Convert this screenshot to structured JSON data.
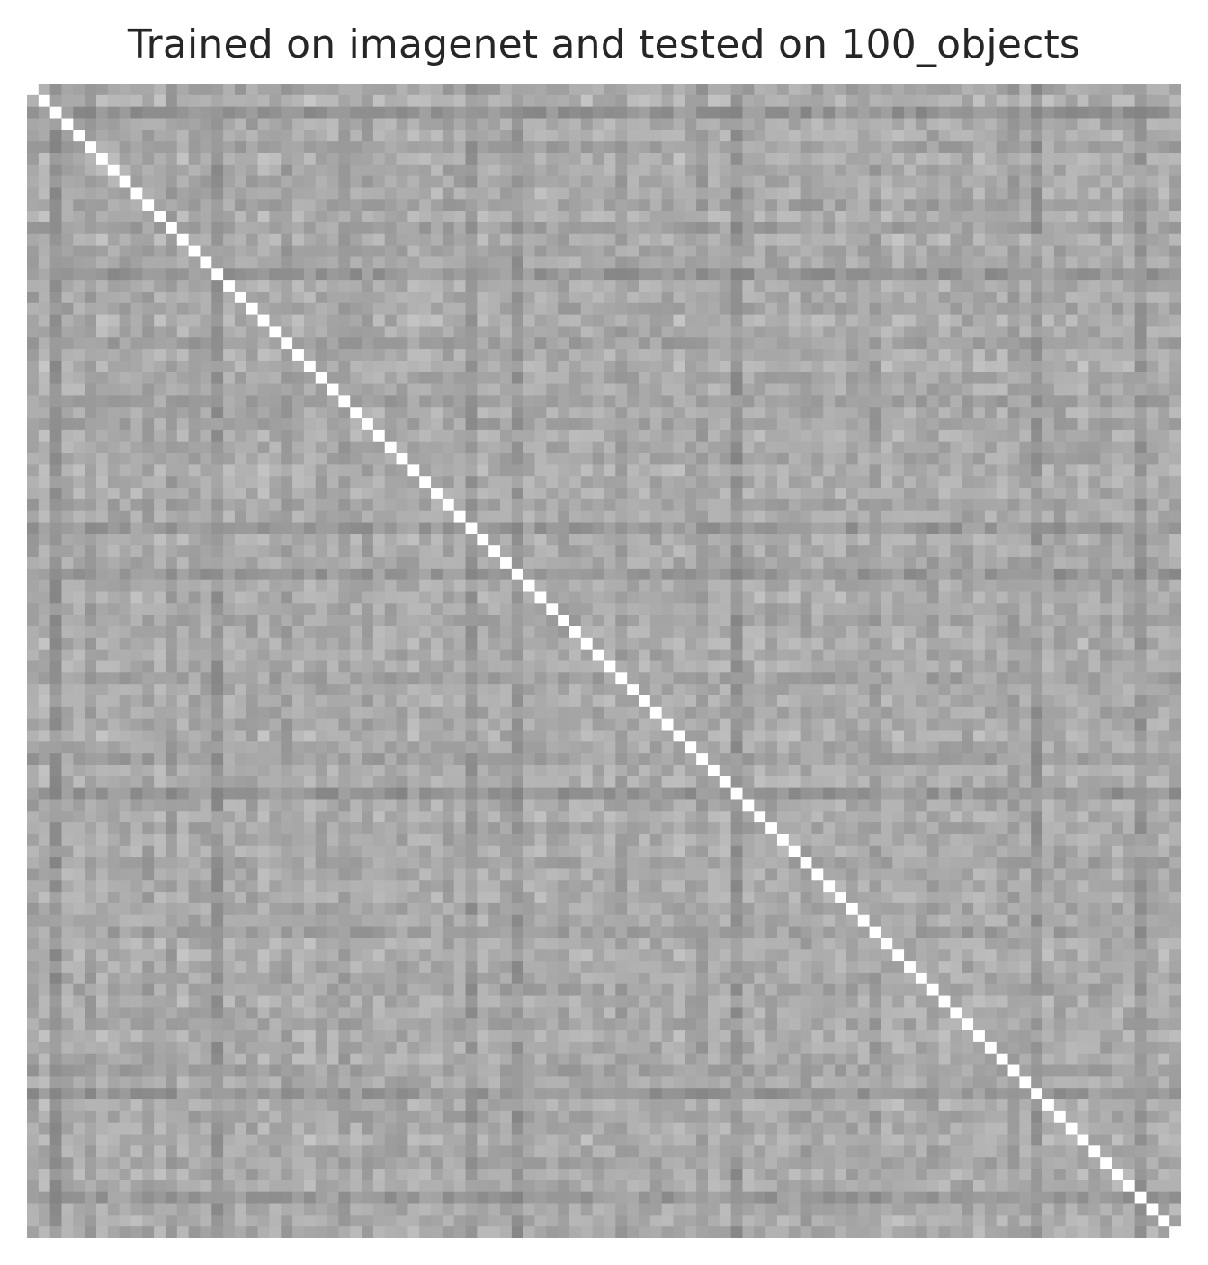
{
  "chart_data": {
    "type": "heatmap",
    "title": "Trained on imagenet and tested on 100_objects",
    "rows": 100,
    "cols": 100,
    "xlabel": "",
    "ylabel": "",
    "x_tick_labels": [],
    "y_tick_labels": [],
    "colormap": "grayscale",
    "color_low": "#7e7e7e",
    "color_high": "#ffffff",
    "value_range": [
      0,
      1
    ],
    "diagonal_value": 1.0,
    "off_diagonal_typical_range": [
      0.45,
      0.72
    ],
    "off_diagonal_mean": 0.6,
    "note_symmetric": true,
    "grid": false,
    "legend": "none",
    "row_means": [
      0.57,
      0.65,
      0.48,
      0.6,
      0.62,
      0.56,
      0.66,
      0.6,
      0.58,
      0.62,
      0.56,
      0.63,
      0.55,
      0.64,
      0.58,
      0.6,
      0.5,
      0.62,
      0.59,
      0.57,
      0.64,
      0.6,
      0.55,
      0.62,
      0.66,
      0.58,
      0.6,
      0.55,
      0.6,
      0.57,
      0.63,
      0.59,
      0.58,
      0.64,
      0.6,
      0.62,
      0.57,
      0.6,
      0.51,
      0.62,
      0.6,
      0.58,
      0.5,
      0.6,
      0.62,
      0.59,
      0.57,
      0.6,
      0.63,
      0.6,
      0.61,
      0.56,
      0.6,
      0.62,
      0.58,
      0.6,
      0.64,
      0.59,
      0.55,
      0.62,
      0.61,
      0.49,
      0.6,
      0.62,
      0.58,
      0.6,
      0.63,
      0.56,
      0.6,
      0.59,
      0.62,
      0.58,
      0.6,
      0.55,
      0.62,
      0.64,
      0.6,
      0.59,
      0.57,
      0.62,
      0.6,
      0.58,
      0.63,
      0.6,
      0.62,
      0.56,
      0.6,
      0.5,
      0.62,
      0.58,
      0.6,
      0.63,
      0.59,
      0.57,
      0.62,
      0.6,
      0.51,
      0.6,
      0.62,
      0.6
    ]
  }
}
